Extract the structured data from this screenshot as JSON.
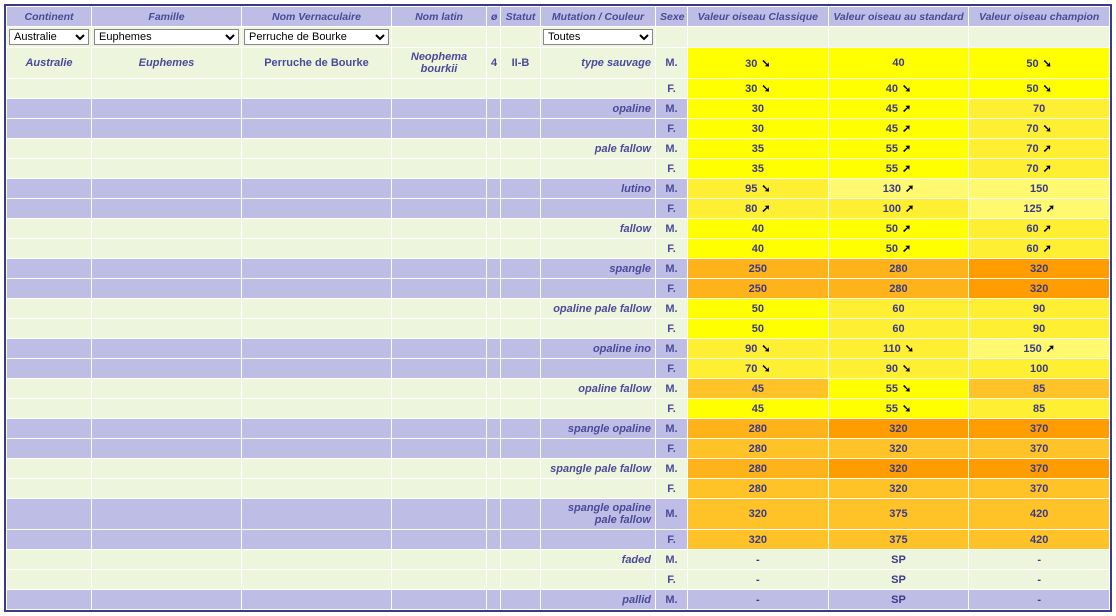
{
  "headers": {
    "continent": "Continent",
    "famille": "Famille",
    "vernaculaire": "Nom Vernaculaire",
    "latin": "Nom latin",
    "diam": "ø",
    "statut": "Statut",
    "mutation": "Mutation / Couleur",
    "sexe": "Sexe",
    "classique": "Valeur oiseau Classique",
    "standard": "Valeur oiseau au standard",
    "champion": "Valeur oiseau champion"
  },
  "filters": {
    "continent": "Australie",
    "famille": "Euphemes",
    "vernaculaire": "Perruche de Bourke",
    "mutation": "Toutes"
  },
  "species": {
    "continent": "Australie",
    "famille": "Euphemes",
    "vernaculaire": "Perruche de Bourke",
    "latin": "Neophema bourkii",
    "diam": "4",
    "statut": "II-B"
  },
  "colors": {
    "yellow_bright": "#ffff00",
    "yellow_mid": "#ffef33",
    "yellow_soft": "#fff970",
    "orange_mid": "#ffc328",
    "orange_deep": "#ffb31a",
    "orange_deeper": "#ff9d00",
    "none": ""
  },
  "rows": [
    {
      "mutation": "type sauvage",
      "sexe": "M.",
      "c": [
        "30",
        "down",
        "yellow_bright"
      ],
      "s": [
        "40",
        "",
        "yellow_bright"
      ],
      "ch": [
        "50",
        "down",
        "yellow_bright"
      ]
    },
    {
      "mutation": "",
      "sexe": "F.",
      "c": [
        "30",
        "down",
        "yellow_bright"
      ],
      "s": [
        "40",
        "down",
        "yellow_bright"
      ],
      "ch": [
        "50",
        "down",
        "yellow_bright"
      ]
    },
    {
      "mutation": "opaline",
      "sexe": "M.",
      "c": [
        "30",
        "",
        "yellow_bright"
      ],
      "s": [
        "45",
        "up",
        "yellow_bright"
      ],
      "ch": [
        "70",
        "",
        "yellow_mid"
      ]
    },
    {
      "mutation": "",
      "sexe": "F.",
      "c": [
        "30",
        "",
        "yellow_bright"
      ],
      "s": [
        "45",
        "up",
        "yellow_bright"
      ],
      "ch": [
        "70",
        "down",
        "yellow_mid"
      ]
    },
    {
      "mutation": "pale fallow",
      "sexe": "M.",
      "c": [
        "35",
        "",
        "yellow_bright"
      ],
      "s": [
        "55",
        "up",
        "yellow_bright"
      ],
      "ch": [
        "70",
        "up",
        "yellow_mid"
      ]
    },
    {
      "mutation": "",
      "sexe": "F.",
      "c": [
        "35",
        "",
        "yellow_bright"
      ],
      "s": [
        "55",
        "up",
        "yellow_bright"
      ],
      "ch": [
        "70",
        "up",
        "yellow_mid"
      ]
    },
    {
      "mutation": "lutino",
      "sexe": "M.",
      "c": [
        "95",
        "down",
        "yellow_mid"
      ],
      "s": [
        "130",
        "up",
        "yellow_soft"
      ],
      "ch": [
        "150",
        "",
        "yellow_soft"
      ]
    },
    {
      "mutation": "",
      "sexe": "F.",
      "c": [
        "80",
        "up",
        "yellow_mid"
      ],
      "s": [
        "100",
        "up",
        "yellow_mid"
      ],
      "ch": [
        "125",
        "up",
        "yellow_soft"
      ]
    },
    {
      "mutation": "fallow",
      "sexe": "M.",
      "c": [
        "40",
        "",
        "yellow_bright"
      ],
      "s": [
        "50",
        "up",
        "yellow_bright"
      ],
      "ch": [
        "60",
        "up",
        "yellow_mid"
      ]
    },
    {
      "mutation": "",
      "sexe": "F.",
      "c": [
        "40",
        "",
        "yellow_bright"
      ],
      "s": [
        "50",
        "up",
        "yellow_bright"
      ],
      "ch": [
        "60",
        "up",
        "yellow_mid"
      ]
    },
    {
      "mutation": "spangle",
      "sexe": "M.",
      "c": [
        "250",
        "",
        "orange_deep"
      ],
      "s": [
        "280",
        "",
        "orange_deep"
      ],
      "ch": [
        "320",
        "",
        "orange_deeper"
      ]
    },
    {
      "mutation": "",
      "sexe": "F.",
      "c": [
        "250",
        "",
        "orange_deep"
      ],
      "s": [
        "280",
        "",
        "orange_deep"
      ],
      "ch": [
        "320",
        "",
        "orange_deeper"
      ]
    },
    {
      "mutation": "opaline pale fallow",
      "sexe": "M.",
      "c": [
        "50",
        "",
        "yellow_bright"
      ],
      "s": [
        "60",
        "",
        "yellow_mid"
      ],
      "ch": [
        "90",
        "",
        "yellow_mid"
      ]
    },
    {
      "mutation": "",
      "sexe": "F.",
      "c": [
        "50",
        "",
        "yellow_bright"
      ],
      "s": [
        "60",
        "",
        "yellow_mid"
      ],
      "ch": [
        "90",
        "",
        "yellow_mid"
      ]
    },
    {
      "mutation": "opaline ino",
      "sexe": "M.",
      "c": [
        "90",
        "down",
        "yellow_mid"
      ],
      "s": [
        "110",
        "down",
        "yellow_mid"
      ],
      "ch": [
        "150",
        "up",
        "yellow_soft"
      ]
    },
    {
      "mutation": "",
      "sexe": "F.",
      "c": [
        "70",
        "down",
        "yellow_mid"
      ],
      "s": [
        "90",
        "down",
        "yellow_mid"
      ],
      "ch": [
        "100",
        "",
        "yellow_mid"
      ]
    },
    {
      "mutation": "opaline fallow",
      "sexe": "M.",
      "c": [
        "45",
        "",
        "orange_mid"
      ],
      "s": [
        "55",
        "down",
        "yellow_bright"
      ],
      "ch": [
        "85",
        "",
        "orange_mid"
      ]
    },
    {
      "mutation": "",
      "sexe": "F.",
      "c": [
        "45",
        "",
        "yellow_bright"
      ],
      "s": [
        "55",
        "down",
        "yellow_bright"
      ],
      "ch": [
        "85",
        "",
        "yellow_mid"
      ]
    },
    {
      "mutation": "spangle opaline",
      "sexe": "M.",
      "c": [
        "280",
        "",
        "orange_deep"
      ],
      "s": [
        "320",
        "",
        "orange_deeper"
      ],
      "ch": [
        "370",
        "",
        "orange_deeper"
      ]
    },
    {
      "mutation": "",
      "sexe": "F.",
      "c": [
        "280",
        "",
        "orange_mid"
      ],
      "s": [
        "320",
        "",
        "orange_mid"
      ],
      "ch": [
        "370",
        "",
        "orange_mid"
      ]
    },
    {
      "mutation": "spangle pale fallow",
      "sexe": "M.",
      "c": [
        "280",
        "",
        "orange_deep"
      ],
      "s": [
        "320",
        "",
        "orange_deeper"
      ],
      "ch": [
        "370",
        "",
        "orange_deeper"
      ]
    },
    {
      "mutation": "",
      "sexe": "F.",
      "c": [
        "280",
        "",
        "orange_mid"
      ],
      "s": [
        "320",
        "",
        "orange_mid"
      ],
      "ch": [
        "370",
        "",
        "orange_mid"
      ]
    },
    {
      "mutation": "spangle opaline pale fallow",
      "sexe": "M.",
      "c": [
        "320",
        "",
        "orange_mid"
      ],
      "s": [
        "375",
        "",
        "orange_mid"
      ],
      "ch": [
        "420",
        "",
        "orange_mid"
      ]
    },
    {
      "mutation": "",
      "sexe": "F.",
      "c": [
        "320",
        "",
        "orange_mid"
      ],
      "s": [
        "375",
        "",
        "orange_mid"
      ],
      "ch": [
        "420",
        "",
        "orange_mid"
      ]
    },
    {
      "mutation": "faded",
      "sexe": "M.",
      "c": [
        "-",
        "",
        "none"
      ],
      "s": [
        "SP",
        "",
        "none"
      ],
      "ch": [
        "-",
        "",
        "none"
      ]
    },
    {
      "mutation": "",
      "sexe": "F.",
      "c": [
        "-",
        "",
        "none"
      ],
      "s": [
        "SP",
        "",
        "none"
      ],
      "ch": [
        "-",
        "",
        "none"
      ]
    },
    {
      "mutation": "pallid",
      "sexe": "M.",
      "c": [
        "-",
        "",
        "none"
      ],
      "s": [
        "SP",
        "",
        "none"
      ],
      "ch": [
        "-",
        "",
        "none"
      ]
    }
  ]
}
